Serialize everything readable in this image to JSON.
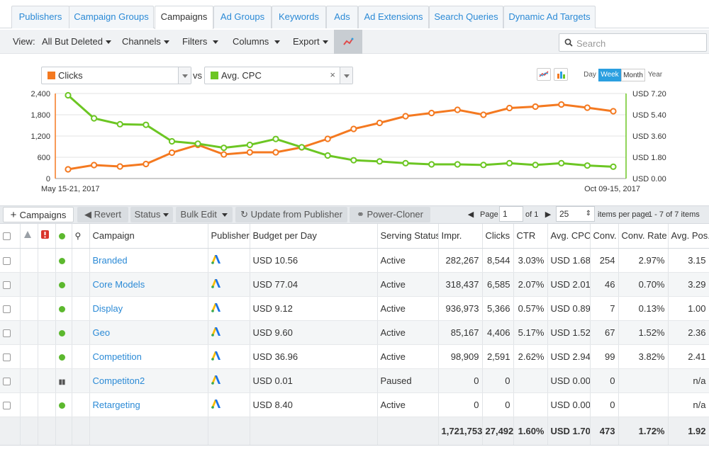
{
  "tabs": [
    "Publishers",
    "Campaign Groups",
    "Campaigns",
    "Ad Groups",
    "Keywords",
    "Ads",
    "Ad Extensions",
    "Search Queries",
    "Dynamic Ad Targets"
  ],
  "active_tab": "Campaigns",
  "toolbar": {
    "view_label": "View:",
    "view_value": "All But Deleted",
    "channels": "Channels",
    "filters": "Filters",
    "columns": "Columns",
    "export": "Export",
    "search_placeholder": "Search"
  },
  "metric_selectors": {
    "left": {
      "label": "Clicks",
      "color": "#f47920"
    },
    "vs": "vs",
    "right": {
      "label": "Avg. CPC",
      "color": "#6cc623"
    }
  },
  "range_buttons": [
    "Day",
    "Week",
    "Month",
    "Year"
  ],
  "active_range": "Week",
  "chart_data": {
    "type": "line",
    "x_start_label": "May 15-21, 2017",
    "x_end_label": "Oct 09-15, 2017",
    "y_left_ticks": [
      "0",
      "600",
      "1,200",
      "1,800",
      "2,400"
    ],
    "y_right_ticks": [
      "USD 0.00",
      "USD 1.80",
      "USD 3.60",
      "USD 5.40",
      "USD 7.20"
    ],
    "y_left_range": [
      0,
      2400
    ],
    "y_right_range": [
      0,
      7.2
    ],
    "series": [
      {
        "name": "Clicks",
        "axis": "left",
        "color": "#f47920",
        "values": [
          260,
          380,
          340,
          410,
          730,
          950,
          680,
          740,
          740,
          880,
          1120,
          1400,
          1570,
          1760,
          1850,
          1940,
          1800,
          1990,
          2030,
          2090,
          2000,
          1900
        ]
      },
      {
        "name": "Avg. CPC",
        "axis": "right",
        "color": "#6cc623",
        "values": [
          7.05,
          5.1,
          4.6,
          4.55,
          3.15,
          2.95,
          2.6,
          2.85,
          3.35,
          2.65,
          1.95,
          1.55,
          1.45,
          1.3,
          1.2,
          1.2,
          1.15,
          1.3,
          1.15,
          1.3,
          1.1,
          1.0
        ]
      }
    ]
  },
  "grid_toolbar": {
    "add": "Campaigns",
    "revert": "Revert",
    "status": "Status",
    "bulk_edit": "Bulk Edit",
    "update": "Update from Publisher",
    "cloner": "Power-Cloner",
    "page_label": "Page",
    "page_value": "1",
    "of_label": "of 1",
    "per_page_value": "25",
    "per_page_label": "items per page",
    "items_range": "1 - 7 of 7 items"
  },
  "table": {
    "headers": [
      "Campaign",
      "Publisher",
      "Budget per Day",
      "Serving Status",
      "Impr.",
      "Clicks",
      "CTR",
      "Avg. CPC",
      "Conv.",
      "Conv. Rate",
      "Avg. Pos."
    ],
    "rows": [
      {
        "status": "active",
        "campaign": "Branded",
        "budget": "USD 10.56",
        "serving": "Active",
        "impr": "282,267",
        "clicks": "8,544",
        "ctr": "3.03%",
        "cpc": "USD 1.68",
        "conv": "254",
        "conv_rate": "2.97%",
        "pos": "3.15"
      },
      {
        "status": "active",
        "campaign": "Core Models",
        "budget": "USD 77.04",
        "serving": "Active",
        "impr": "318,437",
        "clicks": "6,585",
        "ctr": "2.07%",
        "cpc": "USD 2.01",
        "conv": "46",
        "conv_rate": "0.70%",
        "pos": "3.29"
      },
      {
        "status": "active",
        "campaign": "Display",
        "budget": "USD 9.12",
        "serving": "Active",
        "impr": "936,973",
        "clicks": "5,366",
        "ctr": "0.57%",
        "cpc": "USD 0.89",
        "conv": "7",
        "conv_rate": "0.13%",
        "pos": "1.00"
      },
      {
        "status": "active",
        "campaign": "Geo",
        "budget": "USD 9.60",
        "serving": "Active",
        "impr": "85,167",
        "clicks": "4,406",
        "ctr": "5.17%",
        "cpc": "USD 1.52",
        "conv": "67",
        "conv_rate": "1.52%",
        "pos": "2.36"
      },
      {
        "status": "active",
        "campaign": "Competition",
        "budget": "USD 36.96",
        "serving": "Active",
        "impr": "98,909",
        "clicks": "2,591",
        "ctr": "2.62%",
        "cpc": "USD 2.94",
        "conv": "99",
        "conv_rate": "3.82%",
        "pos": "2.41"
      },
      {
        "status": "paused",
        "campaign": "Competiton2",
        "budget": "USD 0.01",
        "serving": "Paused",
        "impr": "0",
        "clicks": "0",
        "ctr": "",
        "cpc": "USD 0.00",
        "conv": "0",
        "conv_rate": "",
        "pos": "n/a"
      },
      {
        "status": "active",
        "campaign": "Retargeting",
        "budget": "USD 8.40",
        "serving": "Active",
        "impr": "0",
        "clicks": "0",
        "ctr": "",
        "cpc": "USD 0.00",
        "conv": "0",
        "conv_rate": "",
        "pos": "n/a"
      }
    ],
    "totals": {
      "impr": "1,721,753",
      "clicks": "27,492",
      "ctr": "1.60%",
      "cpc": "USD 1.70",
      "conv": "473",
      "conv_rate": "1.72%",
      "pos": "1.92"
    }
  }
}
